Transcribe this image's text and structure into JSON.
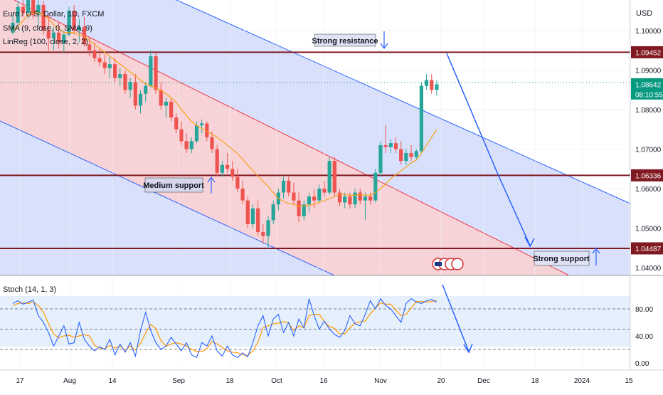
{
  "chart_data": {
    "type": "candlestick",
    "symbol_title": "Euro / U.S. Dollar, 1D, FXCM",
    "legend": [
      "SMA (9, close, 0, SMA, 9)",
      "LinReg (100, close, 2, 2)"
    ],
    "currency": "USD",
    "y_ticks": [
      "1.10000",
      "1.09000",
      "1.08000",
      "1.07000",
      "1.06000",
      "1.05000",
      "1.04000"
    ],
    "x_ticks": [
      "17",
      "Aug",
      "14",
      "Sep",
      "18",
      "Oct",
      "16",
      "Nov",
      "20",
      "Dec",
      "18",
      "2024",
      "15"
    ],
    "price_labels": [
      {
        "text": "1.09452",
        "value": 1.09452
      },
      {
        "text": "1.08642",
        "value": 1.08642,
        "sub": "08:10:55"
      },
      {
        "text": "1.06336",
        "value": 1.06336
      },
      {
        "text": "1.04487",
        "value": 1.04487
      }
    ],
    "levels": [
      {
        "value": 1.09452,
        "label": "Strong resistance"
      },
      {
        "value": 1.06336,
        "label": "Medium support"
      },
      {
        "value": 1.04487,
        "label": "Strong support"
      }
    ],
    "candles": [
      [
        1.0995,
        1.104,
        1.099,
        1.102
      ],
      [
        1.102,
        1.1075,
        1.101,
        1.106
      ],
      [
        1.106,
        1.1085,
        1.1035,
        1.1045
      ],
      [
        1.1045,
        1.109,
        1.103,
        1.108
      ],
      [
        1.108,
        1.1095,
        1.103,
        1.104
      ],
      [
        1.104,
        1.108,
        1.101,
        1.1065
      ],
      [
        1.1065,
        1.1075,
        1.099,
        1.1
      ],
      [
        1.1,
        1.104,
        1.095,
        1.098
      ],
      [
        1.098,
        1.101,
        1.095,
        1.0995
      ],
      [
        1.0995,
        1.102,
        1.0955,
        1.097
      ],
      [
        1.097,
        1.1,
        1.0945,
        1.099
      ],
      [
        1.099,
        1.106,
        1.0985,
        1.105
      ],
      [
        1.105,
        1.1065,
        1.099,
        1.1
      ],
      [
        1.1,
        1.103,
        1.097,
        1.101
      ],
      [
        1.101,
        1.1035,
        1.096,
        1.0965
      ],
      [
        1.0965,
        1.0985,
        1.0935,
        1.095
      ],
      [
        1.095,
        1.097,
        1.092,
        1.093
      ],
      [
        1.093,
        1.0955,
        1.091,
        1.092
      ],
      [
        1.092,
        1.094,
        1.089,
        1.0905
      ],
      [
        1.0905,
        1.0935,
        1.088,
        1.0915
      ],
      [
        1.0915,
        1.093,
        1.087,
        1.088
      ],
      [
        1.088,
        1.0905,
        1.086,
        1.089
      ],
      [
        1.089,
        1.09,
        1.084,
        1.085
      ],
      [
        1.085,
        1.088,
        1.083,
        1.087
      ],
      [
        1.087,
        1.089,
        1.08,
        1.081
      ],
      [
        1.081,
        1.085,
        1.079,
        1.084
      ],
      [
        1.084,
        1.087,
        1.082,
        1.086
      ],
      [
        1.086,
        1.095,
        1.0855,
        1.0935
      ],
      [
        1.0935,
        1.0945,
        1.084,
        1.085
      ],
      [
        1.085,
        1.087,
        1.08,
        1.081
      ],
      [
        1.081,
        1.083,
        1.078,
        1.082
      ],
      [
        1.082,
        1.083,
        1.077,
        1.078
      ],
      [
        1.078,
        1.079,
        1.074,
        1.075
      ],
      [
        1.075,
        1.077,
        1.071,
        1.072
      ],
      [
        1.072,
        1.074,
        1.069,
        1.07
      ],
      [
        1.07,
        1.073,
        1.069,
        1.072
      ],
      [
        1.072,
        1.077,
        1.0715,
        1.076
      ],
      [
        1.076,
        1.0775,
        1.074,
        1.0765
      ],
      [
        1.0765,
        1.077,
        1.072,
        1.073
      ],
      [
        1.073,
        1.0745,
        1.069,
        1.07
      ],
      [
        1.07,
        1.071,
        1.063,
        1.064
      ],
      [
        1.064,
        1.067,
        1.063,
        1.066
      ],
      [
        1.066,
        1.069,
        1.064,
        1.065
      ],
      [
        1.065,
        1.067,
        1.062,
        1.063
      ],
      [
        1.063,
        1.065,
        1.059,
        1.06
      ],
      [
        1.06,
        1.062,
        1.056,
        1.057
      ],
      [
        1.057,
        1.058,
        1.05,
        1.051
      ],
      [
        1.051,
        1.056,
        1.05,
        1.055
      ],
      [
        1.055,
        1.057,
        1.048,
        1.049
      ],
      [
        1.049,
        1.051,
        1.046,
        1.048
      ],
      [
        1.048,
        1.053,
        1.0448,
        1.052
      ],
      [
        1.052,
        1.057,
        1.051,
        1.056
      ],
      [
        1.056,
        1.06,
        1.0545,
        1.059
      ],
      [
        1.059,
        1.063,
        1.0575,
        1.062
      ],
      [
        1.062,
        1.063,
        1.058,
        1.059
      ],
      [
        1.059,
        1.0615,
        1.056,
        1.057
      ],
      [
        1.057,
        1.059,
        1.0515,
        1.053
      ],
      [
        1.053,
        1.057,
        1.052,
        1.056
      ],
      [
        1.056,
        1.059,
        1.054,
        1.058
      ],
      [
        1.058,
        1.06,
        1.055,
        1.057
      ],
      [
        1.057,
        1.061,
        1.0565,
        1.06
      ],
      [
        1.06,
        1.062,
        1.058,
        1.059
      ],
      [
        1.059,
        1.068,
        1.0585,
        1.067
      ],
      [
        1.067,
        1.068,
        1.058,
        1.059
      ],
      [
        1.059,
        1.06,
        1.0555,
        1.0565
      ],
      [
        1.0565,
        1.059,
        1.055,
        1.058
      ],
      [
        1.058,
        1.059,
        1.055,
        1.056
      ],
      [
        1.056,
        1.06,
        1.055,
        1.059
      ],
      [
        1.059,
        1.06,
        1.056,
        1.057
      ],
      [
        1.057,
        1.059,
        1.052,
        1.058
      ],
      [
        1.058,
        1.059,
        1.056,
        1.057
      ],
      [
        1.057,
        1.065,
        1.0565,
        1.064
      ],
      [
        1.064,
        1.072,
        1.063,
        1.071
      ],
      [
        1.071,
        1.076,
        1.069,
        1.0705
      ],
      [
        1.0705,
        1.0725,
        1.069,
        1.0715
      ],
      [
        1.0715,
        1.073,
        1.069,
        1.07
      ],
      [
        1.07,
        1.072,
        1.066,
        1.067
      ],
      [
        1.067,
        1.07,
        1.066,
        1.069
      ],
      [
        1.069,
        1.071,
        1.067,
        1.068
      ],
      [
        1.068,
        1.07,
        1.0675,
        1.0695
      ],
      [
        1.0695,
        1.087,
        1.069,
        1.086
      ],
      [
        1.086,
        1.089,
        1.085,
        1.0875
      ],
      [
        1.0875,
        1.089,
        1.084,
        1.085
      ],
      [
        1.085,
        1.0875,
        1.0835,
        1.0864
      ]
    ],
    "sma": [
      1.1,
      1.101,
      1.1025,
      1.104,
      1.1045,
      1.1045,
      1.104,
      1.103,
      1.1015,
      1.1005,
      1.0995,
      1.0995,
      1.0995,
      1.099,
      1.0985,
      1.0975,
      1.0965,
      1.0955,
      1.0945,
      1.0935,
      1.0925,
      1.0915,
      1.0905,
      1.0895,
      1.0885,
      1.0875,
      1.0865,
      1.086,
      1.0855,
      1.0848,
      1.084,
      1.083,
      1.0818,
      1.08,
      1.0785,
      1.077,
      1.076,
      1.0752,
      1.0745,
      1.0738,
      1.073,
      1.072,
      1.071,
      1.07,
      1.0688,
      1.0675,
      1.066,
      1.0645,
      1.0632,
      1.0618,
      1.0605,
      1.059,
      1.0575,
      1.0568,
      1.0562,
      1.056,
      1.0555,
      1.0556,
      1.0558,
      1.056,
      1.0565,
      1.057,
      1.0575,
      1.058,
      1.0585,
      1.0585,
      1.0583,
      1.0583,
      1.0585,
      1.0583,
      1.0583,
      1.059,
      1.06,
      1.0612,
      1.0625,
      1.0635,
      1.0645,
      1.0655,
      1.0665,
      1.0672,
      1.069,
      1.071,
      1.073,
      1.075
    ],
    "channels": [
      {
        "name": "upper-band",
        "color": "#2962ff"
      },
      {
        "name": "midline",
        "color": "#f23645"
      },
      {
        "name": "lower-band",
        "color": "#2962ff"
      }
    ],
    "forecast_arrow": [
      "1.09452 → 1.06336 → 1.04487"
    ],
    "stoch": {
      "title": "Stoch (14, 1, 3)",
      "y_ticks": [
        "80.00",
        "40.00",
        "0.00"
      ],
      "levels": [
        80,
        50,
        20
      ],
      "k": [
        88,
        92,
        87,
        90,
        93,
        70,
        60,
        45,
        25,
        40,
        55,
        28,
        30,
        60,
        35,
        25,
        18,
        24,
        20,
        35,
        12,
        28,
        16,
        30,
        10,
        48,
        75,
        48,
        30,
        20,
        25,
        38,
        28,
        18,
        30,
        12,
        8,
        30,
        25,
        40,
        18,
        10,
        25,
        12,
        8,
        15,
        9,
        30,
        55,
        70,
        40,
        65,
        72,
        45,
        60,
        40,
        65,
        52,
        95,
        70,
        50,
        62,
        50,
        42,
        38,
        48,
        70,
        58,
        55,
        72,
        92,
        80,
        95,
        85,
        80,
        70,
        60,
        88,
        95,
        90,
        88,
        92,
        94,
        90
      ],
      "d": [
        85,
        88,
        89,
        88,
        90,
        85,
        75,
        58,
        43,
        37,
        40,
        41,
        38,
        40,
        42,
        40,
        26,
        22,
        21,
        26,
        22,
        25,
        19,
        25,
        19,
        29,
        44,
        57,
        51,
        33,
        25,
        28,
        30,
        28,
        25,
        20,
        17,
        17,
        21,
        32,
        28,
        23,
        18,
        16,
        15,
        12,
        11,
        18,
        31,
        52,
        55,
        58,
        59,
        61,
        59,
        48,
        55,
        52,
        70,
        72,
        72,
        61,
        54,
        51,
        43,
        43,
        52,
        59,
        61,
        62,
        73,
        81,
        89,
        87,
        87,
        78,
        70,
        72,
        81,
        91,
        91,
        90,
        91,
        92
      ]
    },
    "colors": {
      "bull": "#26a69a",
      "bear": "#ef5350",
      "sma": "#f7a21b",
      "stoch_k": "#2962ff",
      "stoch_d": "#ff9800",
      "level_line": "#801922",
      "label_bg": "#801922",
      "last_price_bg": "#089981"
    }
  }
}
